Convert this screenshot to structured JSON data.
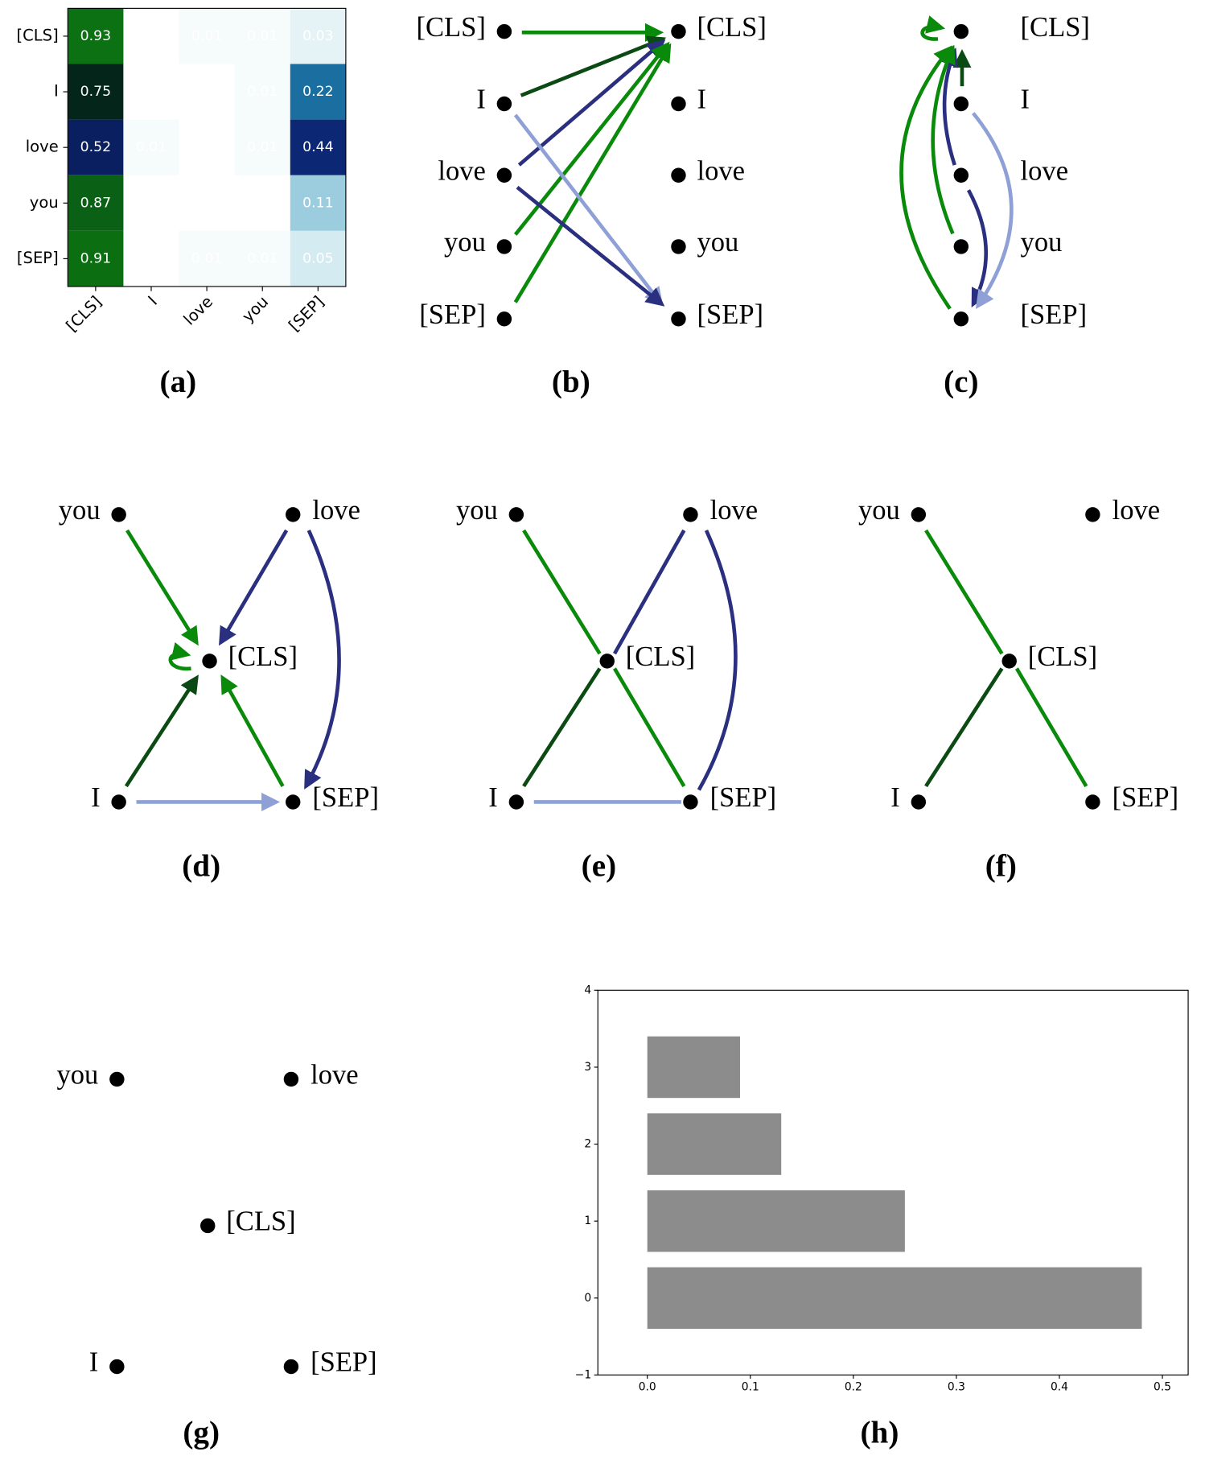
{
  "chart_data": [
    {
      "type": "heatmap",
      "caption": "(a)",
      "x_categories": [
        "[CLS]",
        "I",
        "love",
        "you",
        "[SEP]"
      ],
      "y_categories": [
        "[CLS]",
        "I",
        "love",
        "you",
        "[SEP]"
      ],
      "values": [
        [
          0.93,
          null,
          0.01,
          0.01,
          0.03
        ],
        [
          0.75,
          0.0,
          null,
          0.01,
          0.22
        ],
        [
          0.52,
          0.01,
          null,
          0.01,
          0.44
        ],
        [
          0.87,
          null,
          null,
          null,
          0.11
        ],
        [
          0.91,
          null,
          0.01,
          0.01,
          0.05
        ]
      ],
      "value_labels": [
        [
          "0.93",
          null,
          "0.01",
          "0.01",
          "0.03"
        ],
        [
          "0.75",
          "0.00",
          null,
          "0.01",
          "0.22"
        ],
        [
          "0.52",
          "0.01",
          null,
          "0.01",
          "0.44"
        ],
        [
          "0.87",
          null,
          null,
          null,
          "0.11"
        ],
        [
          "0.91",
          null,
          "0.01",
          "0.01",
          "0.05"
        ]
      ]
    },
    {
      "type": "barh",
      "caption": "(h)",
      "color": "#8c8c8c",
      "categories": [
        0,
        1,
        2,
        3
      ],
      "values": [
        0.48,
        0.25,
        0.13,
        0.09
      ],
      "xlim": [
        -0.048,
        0.525
      ],
      "ylim": [
        -1,
        4
      ],
      "xticks": [
        {
          "value": 0,
          "label": "0.0"
        },
        0.1,
        0.2,
        0.3,
        0.4,
        0.5
      ],
      "yticks": [
        {
          "value": -1,
          "label": "−1"
        },
        0,
        1,
        2,
        3,
        4
      ]
    }
  ],
  "diagrams": [
    {
      "caption": "(b)",
      "left_nodes": [
        "[CLS]",
        "I",
        "love",
        "you",
        "[SEP]"
      ],
      "right_nodes": [
        "[CLS]",
        "I",
        "love",
        "you",
        "[SEP]"
      ]
    },
    {
      "caption": "(c)",
      "nodes": [
        "[CLS]",
        "I",
        "love",
        "you",
        "[SEP]"
      ]
    },
    {
      "caption": "(d)",
      "nodes": [
        "you",
        "love",
        "[CLS]",
        "I",
        "[SEP]"
      ]
    },
    {
      "caption": "(e)",
      "nodes": [
        "you",
        "love",
        "[CLS]",
        "I",
        "[SEP]"
      ]
    },
    {
      "caption": "(f)",
      "nodes": [
        "you",
        "love",
        "[CLS]",
        "I",
        "[SEP]"
      ]
    },
    {
      "caption": "(g)",
      "nodes": [
        "you",
        "love",
        "[CLS]",
        "I",
        "[SEP]"
      ]
    }
  ]
}
